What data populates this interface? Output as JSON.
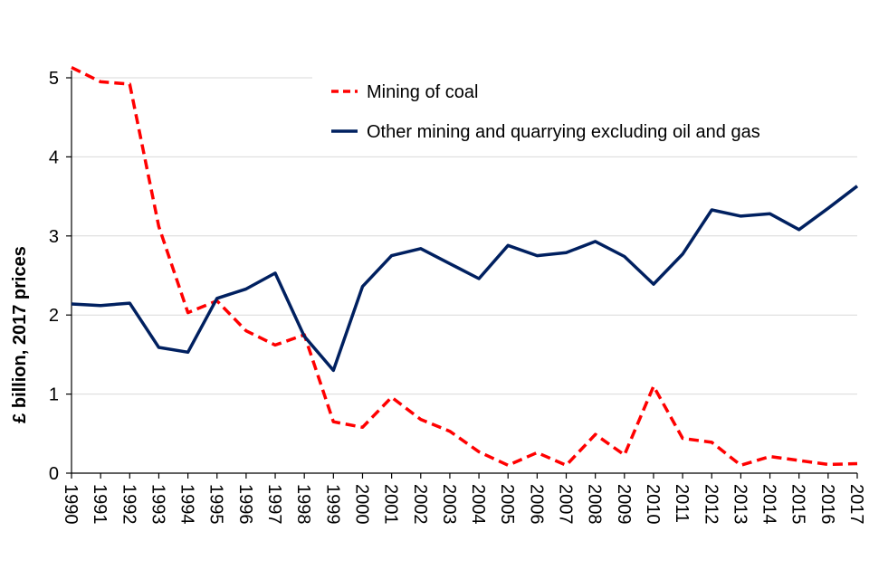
{
  "chart_data": {
    "type": "line",
    "title": "",
    "xlabel": "",
    "ylabel": "£ billion, 2017 prices",
    "ylim": [
      0,
      5
    ],
    "yticks": [
      "0",
      "1",
      "2",
      "3",
      "4",
      "5"
    ],
    "grid": true,
    "legend_position": "top-right",
    "x": [
      "1990",
      "1991",
      "1992",
      "1993",
      "1994",
      "1995",
      "1996",
      "1997",
      "1998",
      "1999",
      "2000",
      "2001",
      "2002",
      "2003",
      "2004",
      "2005",
      "2006",
      "2007",
      "2008",
      "2009",
      "2010",
      "2011",
      "2012",
      "2013",
      "2014",
      "2015",
      "2016",
      "2017"
    ],
    "series": [
      {
        "name": "Mining of coal",
        "color": "#ff0000",
        "style": "dashed",
        "values": [
          5.13,
          4.95,
          4.92,
          3.12,
          2.03,
          2.18,
          1.8,
          1.62,
          1.75,
          0.65,
          0.58,
          0.96,
          0.68,
          0.53,
          0.27,
          0.1,
          0.26,
          0.1,
          0.49,
          0.23,
          1.1,
          0.44,
          0.39,
          0.1,
          0.21,
          0.16,
          0.11,
          0.12
        ]
      },
      {
        "name": "Other mining and quarrying excluding oil and gas",
        "color": "#002060",
        "style": "solid",
        "values": [
          2.14,
          2.12,
          2.15,
          1.59,
          1.53,
          2.21,
          2.33,
          2.53,
          1.73,
          1.3,
          2.36,
          2.75,
          2.84,
          2.65,
          2.46,
          2.88,
          2.75,
          2.79,
          2.93,
          2.74,
          2.39,
          2.77,
          3.33,
          3.25,
          3.28,
          3.08,
          3.35,
          3.63
        ]
      }
    ]
  }
}
